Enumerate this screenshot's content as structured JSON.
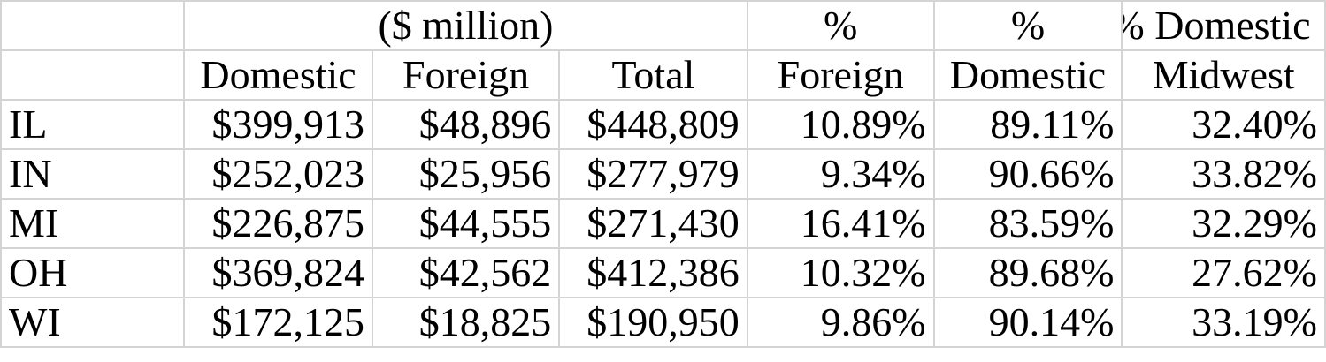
{
  "header_row_1": {
    "units": "($ million)",
    "pct_foreign": "%",
    "pct_domestic": "%",
    "pct_domestic_midwest": "% Domestic"
  },
  "header_row_2": {
    "domestic": "Domestic",
    "foreign": "Foreign",
    "total": "Total",
    "pct_foreign": "Foreign",
    "pct_domestic": "Domestic",
    "pct_domestic_midwest": "Midwest"
  },
  "rows": [
    {
      "state": "IL",
      "domestic": "$399,913",
      "foreign": "$48,896",
      "total": "$448,809",
      "pct_foreign": "10.89%",
      "pct_domestic": "89.11%",
      "pct_midwest": "32.40%"
    },
    {
      "state": "IN",
      "domestic": "$252,023",
      "foreign": "$25,956",
      "total": "$277,979",
      "pct_foreign": "9.34%",
      "pct_domestic": "90.66%",
      "pct_midwest": "33.82%"
    },
    {
      "state": "MI",
      "domestic": "$226,875",
      "foreign": "$44,555",
      "total": "$271,430",
      "pct_foreign": "16.41%",
      "pct_domestic": "83.59%",
      "pct_midwest": "32.29%"
    },
    {
      "state": "OH",
      "domestic": "$369,824",
      "foreign": "$42,562",
      "total": "$412,386",
      "pct_foreign": "10.32%",
      "pct_domestic": "89.68%",
      "pct_midwest": "27.62%"
    },
    {
      "state": "WI",
      "domestic": "$172,125",
      "foreign": "$18,825",
      "total": "$190,950",
      "pct_foreign": "9.86%",
      "pct_domestic": "90.14%",
      "pct_midwest": "33.19%"
    }
  ]
}
